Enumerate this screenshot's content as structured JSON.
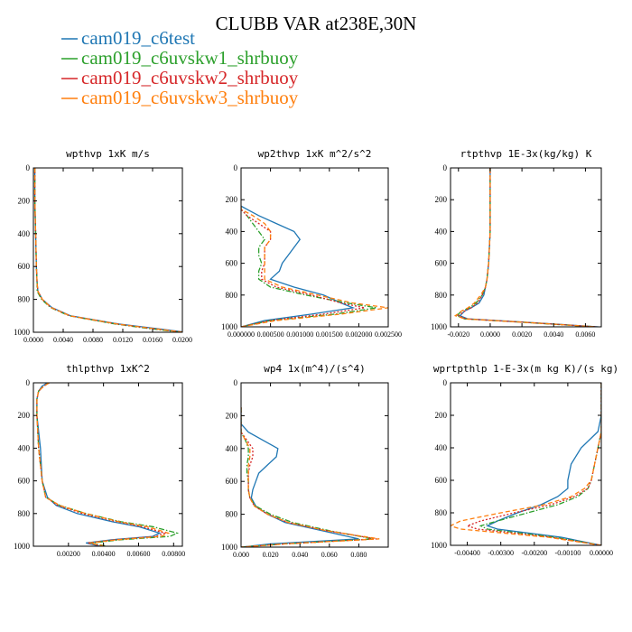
{
  "title": "CLUBB VAR at238E,30N",
  "legend": [
    {
      "name": "cam019_c6test",
      "color": "#1f77b4",
      "dash": "solid"
    },
    {
      "name": "cam019_c6uvskw1_shrbuoy",
      "color": "#2ca02c",
      "dash": "dashdot"
    },
    {
      "name": "cam019_c6uvskw2_shrbuoy",
      "color": "#d62728",
      "dash": "dot"
    },
    {
      "name": "cam019_c6uvskw3_shrbuoy",
      "color": "#ff7f0e",
      "dash": "dash"
    }
  ],
  "chart_data": [
    {
      "type": "line",
      "title": "wpthvp  1xK m/s",
      "xlim": [
        0,
        0.02
      ],
      "ylim": [
        1000,
        0
      ],
      "xticks": [
        "0.0000",
        "0.0040",
        "0.0080",
        "0.0120",
        "0.0160",
        "0.0200"
      ],
      "yticks": [
        "0",
        "200",
        "400",
        "600",
        "800",
        "1000"
      ],
      "y": [
        0,
        200,
        400,
        600,
        700,
        750,
        800,
        850,
        900,
        950,
        980,
        1000
      ],
      "series": [
        {
          "values": [
            0.0002,
            0.0002,
            0.0003,
            0.0004,
            0.0005,
            0.0006,
            0.0012,
            0.0025,
            0.005,
            0.0115,
            0.017,
            0.0205
          ]
        },
        {
          "values": [
            0.0002,
            0.0002,
            0.0003,
            0.0004,
            0.0005,
            0.0005,
            0.0011,
            0.0023,
            0.0048,
            0.011,
            0.016,
            0.0198
          ]
        },
        {
          "values": [
            0.0002,
            0.0002,
            0.0003,
            0.0004,
            0.0005,
            0.0006,
            0.0012,
            0.0024,
            0.0049,
            0.0112,
            0.0165,
            0.0201
          ]
        },
        {
          "values": [
            0.0002,
            0.0002,
            0.0003,
            0.0004,
            0.0005,
            0.0006,
            0.0012,
            0.0024,
            0.0049,
            0.0113,
            0.0166,
            0.0202
          ]
        }
      ]
    },
    {
      "type": "line",
      "title": "wp2thvp  1xK m^2/s^2",
      "xlim": [
        0,
        0.0025
      ],
      "ylim": [
        1000,
        0
      ],
      "xticks": [
        "0.000000",
        "0.000500",
        "0.001000",
        "0.001500",
        "0.002000",
        "0.002500"
      ],
      "yticks": [
        "0",
        "200",
        "400",
        "600",
        "800",
        "1000"
      ],
      "y": [
        240,
        260,
        300,
        350,
        400,
        450,
        500,
        550,
        600,
        650,
        700,
        750,
        800,
        850,
        880,
        920,
        960,
        1000
      ],
      "series": [
        {
          "values": [
            0.0,
            0.0001,
            0.0003,
            0.0006,
            0.0009,
            0.001,
            0.0009,
            0.0008,
            0.0007,
            0.00065,
            0.0005,
            0.0009,
            0.0014,
            0.0017,
            0.0019,
            0.0012,
            0.0004,
            0.0
          ]
        },
        {
          "values": [
            0.0,
            0.0,
            0.0001,
            0.0002,
            0.0003,
            0.0004,
            0.0003,
            0.0003,
            0.00035,
            0.0003,
            0.0003,
            0.0005,
            0.0011,
            0.0018,
            0.0023,
            0.0016,
            0.0005,
            0.0
          ]
        },
        {
          "values": [
            0.0,
            0.0,
            0.0001,
            0.0003,
            0.0005,
            0.0005,
            0.0004,
            0.0004,
            0.0004,
            0.00035,
            0.00035,
            0.0006,
            0.0012,
            0.0017,
            0.0021,
            0.0014,
            0.0005,
            0.0
          ]
        },
        {
          "values": [
            0.0,
            0.0,
            0.0002,
            0.0004,
            0.0005,
            0.0005,
            0.0004,
            0.0004,
            0.0004,
            0.0004,
            0.0004,
            0.0007,
            0.0013,
            0.0019,
            0.0025,
            0.0017,
            0.0006,
            0.0
          ]
        }
      ]
    },
    {
      "type": "line",
      "title": "rtpthvp  1E-3x(kg/kg) K",
      "xlim": [
        -0.0025,
        0.007
      ],
      "ylim": [
        1000,
        0
      ],
      "xticks": [
        "-0.0020",
        "0.0000",
        "0.0020",
        "0.0040",
        "0.0060"
      ],
      "xtick_values": [
        -0.002,
        0.0,
        0.002,
        0.004,
        0.006
      ],
      "yticks": [
        "0",
        "200",
        "400",
        "600",
        "800",
        "1000"
      ],
      "y": [
        0,
        200,
        400,
        600,
        700,
        750,
        800,
        850,
        880,
        900,
        930,
        950,
        970,
        1000
      ],
      "series": [
        {
          "values": [
            0.0,
            0.0,
            0.0,
            -0.0001,
            -0.0002,
            -0.0003,
            -0.0004,
            -0.0007,
            -0.0012,
            -0.0016,
            -0.0019,
            -0.0014,
            0.002,
            0.0068
          ]
        },
        {
          "values": [
            0.0,
            0.0,
            0.0,
            -0.0001,
            -0.0002,
            -0.0003,
            -0.0005,
            -0.0009,
            -0.0013,
            -0.0018,
            -0.0021,
            -0.0016,
            0.0018,
            0.0066
          ]
        },
        {
          "values": [
            0.0,
            0.0,
            0.0,
            -0.0001,
            -0.0002,
            -0.0003,
            -0.0005,
            -0.0008,
            -0.0012,
            -0.0016,
            -0.002,
            -0.0015,
            0.0019,
            0.0067
          ]
        },
        {
          "values": [
            0.0,
            0.0,
            0.0,
            -0.0001,
            -0.0002,
            -0.0003,
            -0.0006,
            -0.001,
            -0.0014,
            -0.0018,
            -0.0022,
            -0.0016,
            0.0019,
            0.0067
          ]
        }
      ]
    },
    {
      "type": "line",
      "title": "thlpthvp  1xK^2",
      "xlim": [
        0,
        0.0085
      ],
      "ylim": [
        1000,
        0
      ],
      "xticks": [
        "0.00200",
        "0.00400",
        "0.00600",
        "0.00800"
      ],
      "xtick_values": [
        0.002,
        0.004,
        0.006,
        0.008
      ],
      "yticks": [
        "0",
        "200",
        "400",
        "600",
        "800",
        "1000"
      ],
      "y": [
        0,
        20,
        50,
        100,
        200,
        400,
        600,
        700,
        750,
        800,
        850,
        880,
        920,
        940,
        960,
        980,
        1000
      ],
      "series": [
        {
          "values": [
            0.0008,
            0.0005,
            0.0003,
            0.0002,
            0.0002,
            0.0004,
            0.0005,
            0.0008,
            0.0013,
            0.0025,
            0.0045,
            0.006,
            0.0072,
            0.0068,
            0.0045,
            0.003,
            0.0038
          ]
        },
        {
          "values": [
            0.0009,
            0.0006,
            0.0003,
            0.0002,
            0.0002,
            0.0003,
            0.0005,
            0.0007,
            0.0015,
            0.003,
            0.005,
            0.0068,
            0.0082,
            0.0078,
            0.005,
            0.0033,
            0.0042
          ]
        },
        {
          "values": [
            0.0009,
            0.0006,
            0.0003,
            0.0002,
            0.0002,
            0.0003,
            0.0005,
            0.0007,
            0.0014,
            0.0028,
            0.0048,
            0.0062,
            0.0075,
            0.007,
            0.0046,
            0.0031,
            0.004
          ]
        },
        {
          "values": [
            0.0009,
            0.0006,
            0.0003,
            0.0002,
            0.0002,
            0.0003,
            0.0005,
            0.0007,
            0.0015,
            0.003,
            0.0049,
            0.0065,
            0.0077,
            0.0073,
            0.0048,
            0.0032,
            0.0041
          ]
        }
      ]
    },
    {
      "type": "line",
      "title": "wp4  1x(m^4)/(s^4)",
      "xlim": [
        0,
        0.1
      ],
      "ylim": [
        1000,
        0
      ],
      "xticks": [
        "0.000",
        "0.020",
        "0.040",
        "0.060",
        "0.080"
      ],
      "yticks": [
        "0",
        "200",
        "400",
        "600",
        "800",
        "1000"
      ],
      "y": [
        150,
        250,
        300,
        350,
        400,
        450,
        500,
        550,
        600,
        650,
        700,
        750,
        800,
        850,
        900,
        950,
        980,
        1000
      ],
      "series": [
        {
          "values": [
            0.0,
            0.0,
            0.005,
            0.015,
            0.025,
            0.024,
            0.018,
            0.012,
            0.01,
            0.008,
            0.007,
            0.01,
            0.018,
            0.03,
            0.055,
            0.08,
            0.02,
            0.0
          ]
        },
        {
          "values": [
            0.0,
            0.0,
            0.0,
            0.003,
            0.005,
            0.005,
            0.004,
            0.004,
            0.005,
            0.005,
            0.006,
            0.01,
            0.02,
            0.035,
            0.06,
            0.09,
            0.03,
            0.0
          ]
        },
        {
          "values": [
            0.0,
            0.0,
            0.0,
            0.004,
            0.008,
            0.008,
            0.006,
            0.005,
            0.005,
            0.005,
            0.006,
            0.009,
            0.018,
            0.032,
            0.058,
            0.092,
            0.03,
            0.0
          ]
        },
        {
          "values": [
            0.0,
            0.0,
            0.0,
            0.003,
            0.006,
            0.006,
            0.005,
            0.005,
            0.005,
            0.005,
            0.006,
            0.009,
            0.018,
            0.032,
            0.058,
            0.094,
            0.03,
            0.0
          ]
        }
      ]
    },
    {
      "type": "line",
      "title": "wprtpthlp  1-E-3x(m kg K)/(s kg)",
      "xlim": [
        -0.0045,
        0.0
      ],
      "ylim": [
        1000,
        0
      ],
      "xticks": [
        "-0.00400",
        "-0.00300",
        "-0.00200",
        "-0.00100",
        "0.00000"
      ],
      "xtick_values": [
        -0.004,
        -0.003,
        -0.002,
        -0.001,
        0.0
      ],
      "yticks": [
        "0",
        "200",
        "400",
        "600",
        "800",
        "1000"
      ],
      "y": [
        0,
        200,
        300,
        400,
        500,
        600,
        650,
        700,
        750,
        800,
        850,
        880,
        900,
        950,
        1000
      ],
      "series": [
        {
          "values": [
            0.0,
            0.0,
            -0.0001,
            -0.0006,
            -0.0009,
            -0.001,
            -0.001,
            -0.0013,
            -0.0018,
            -0.0025,
            -0.0031,
            -0.0034,
            -0.0031,
            -0.0012,
            0.0
          ]
        },
        {
          "values": [
            0.0,
            0.0,
            0.0,
            -0.0001,
            -0.0002,
            -0.0003,
            -0.0004,
            -0.0007,
            -0.0013,
            -0.0022,
            -0.0031,
            -0.0036,
            -0.0034,
            -0.0014,
            0.0
          ]
        },
        {
          "values": [
            0.0,
            0.0,
            0.0,
            -0.0001,
            -0.0002,
            -0.0003,
            -0.0004,
            -0.0008,
            -0.0015,
            -0.0026,
            -0.0036,
            -0.004,
            -0.0037,
            -0.0015,
            0.0
          ]
        },
        {
          "values": [
            0.0,
            0.0,
            0.0,
            -0.0001,
            -0.0002,
            -0.0003,
            -0.0005,
            -0.0009,
            -0.0017,
            -0.003,
            -0.0042,
            -0.0045,
            -0.0042,
            -0.0016,
            0.0
          ]
        }
      ]
    }
  ]
}
